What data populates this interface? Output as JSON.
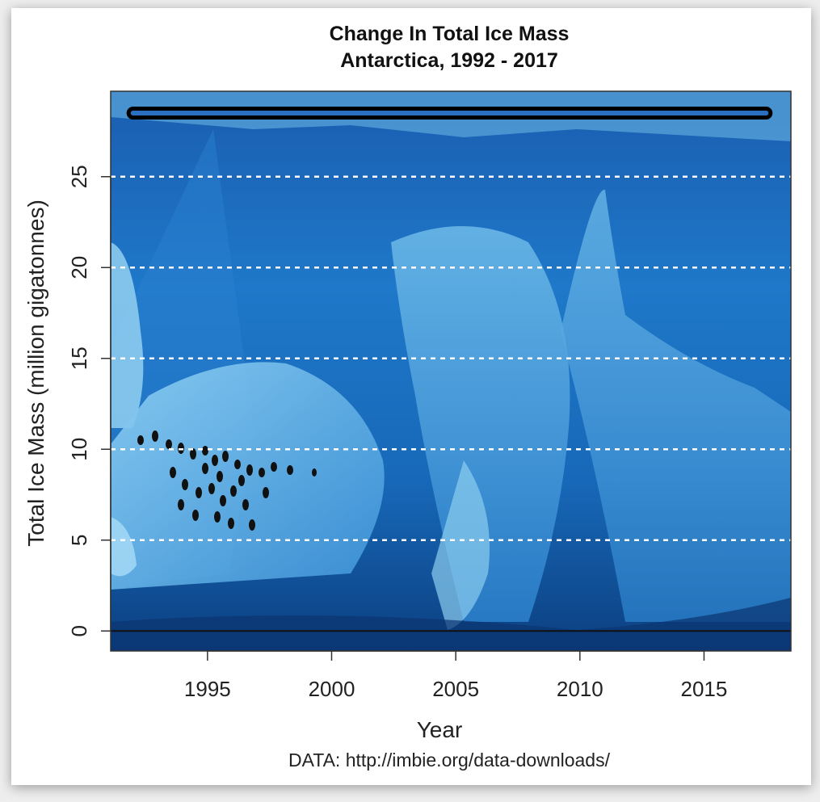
{
  "chart_data": {
    "type": "line",
    "title": "Change In Total Ice Mass",
    "subtitle": "Antarctica, 1992 - 2017",
    "xlabel": "Year",
    "ylabel": "Total Ice Mass (million gigatonnes)",
    "source": "DATA: http://imbie.org/data-downloads/",
    "xlim": [
      1991.1,
      2018.5
    ],
    "ylim": [
      -1.1,
      29.7
    ],
    "x_ticks": [
      1995,
      2000,
      2005,
      2010,
      2015
    ],
    "x_tick_labels": [
      "1995",
      "2000",
      "2005",
      "2010",
      "2015"
    ],
    "y_ticks": [
      0,
      5,
      10,
      15,
      20,
      25
    ],
    "y_tick_labels": [
      "0",
      "5",
      "10",
      "15",
      "20",
      "25"
    ],
    "grid": "horizontal dashed white lines at y ticks",
    "reference_line": 0,
    "series": [
      {
        "x": [
          1992,
          1995,
          2000,
          2005,
          2010,
          2015,
          2017.5
        ],
        "y": [
          28.5,
          28.5,
          28.5,
          28.5,
          28.5,
          28.5,
          28.5
        ]
      }
    ],
    "background": "photo of Antarctic iceberg with penguins",
    "colors": {
      "line": "#000000",
      "grid": "#ffffff",
      "ice_dark": "#0a3f86",
      "ice_mid": "#1e78c8",
      "ice_light": "#7cc6ee"
    }
  }
}
